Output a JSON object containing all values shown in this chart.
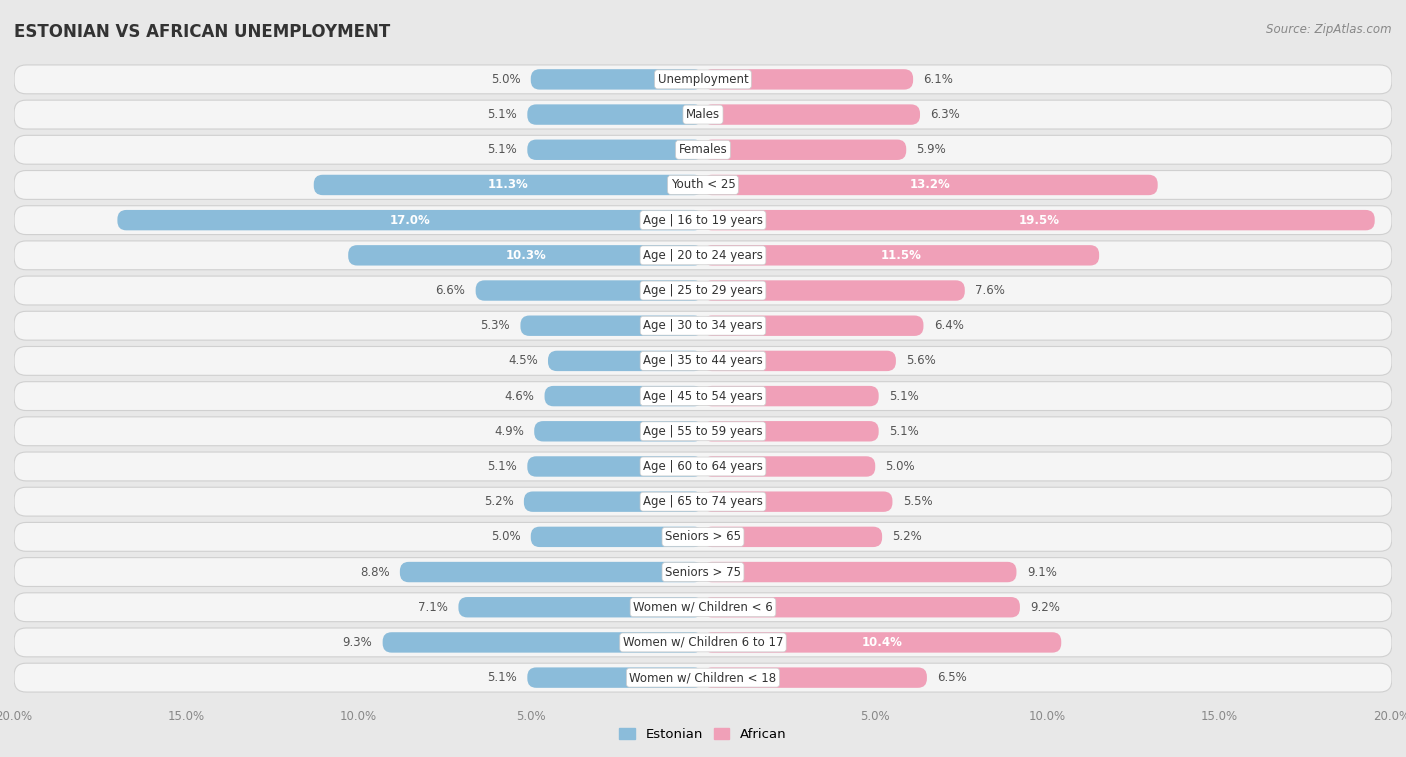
{
  "title": "ESTONIAN VS AFRICAN UNEMPLOYMENT",
  "source": "Source: ZipAtlas.com",
  "categories": [
    "Unemployment",
    "Males",
    "Females",
    "Youth < 25",
    "Age | 16 to 19 years",
    "Age | 20 to 24 years",
    "Age | 25 to 29 years",
    "Age | 30 to 34 years",
    "Age | 35 to 44 years",
    "Age | 45 to 54 years",
    "Age | 55 to 59 years",
    "Age | 60 to 64 years",
    "Age | 65 to 74 years",
    "Seniors > 65",
    "Seniors > 75",
    "Women w/ Children < 6",
    "Women w/ Children 6 to 17",
    "Women w/ Children < 18"
  ],
  "estonian": [
    5.0,
    5.1,
    5.1,
    11.3,
    17.0,
    10.3,
    6.6,
    5.3,
    4.5,
    4.6,
    4.9,
    5.1,
    5.2,
    5.0,
    8.8,
    7.1,
    9.3,
    5.1
  ],
  "african": [
    6.1,
    6.3,
    5.9,
    13.2,
    19.5,
    11.5,
    7.6,
    6.4,
    5.6,
    5.1,
    5.1,
    5.0,
    5.5,
    5.2,
    9.1,
    9.2,
    10.4,
    6.5
  ],
  "estonian_color": "#8bbcda",
  "estonian_color_dark": "#5a9fc0",
  "african_color": "#f0a0b8",
  "african_color_dark": "#e06080",
  "background_color": "#e8e8e8",
  "row_bg_color": "#f5f5f5",
  "row_border_color": "#d0d0d0",
  "axis_max": 20.0,
  "label_fontsize": 8.5,
  "cat_fontsize": 8.5,
  "title_fontsize": 12,
  "source_fontsize": 8.5,
  "tick_fontsize": 8.5,
  "legend_fontsize": 9.5
}
